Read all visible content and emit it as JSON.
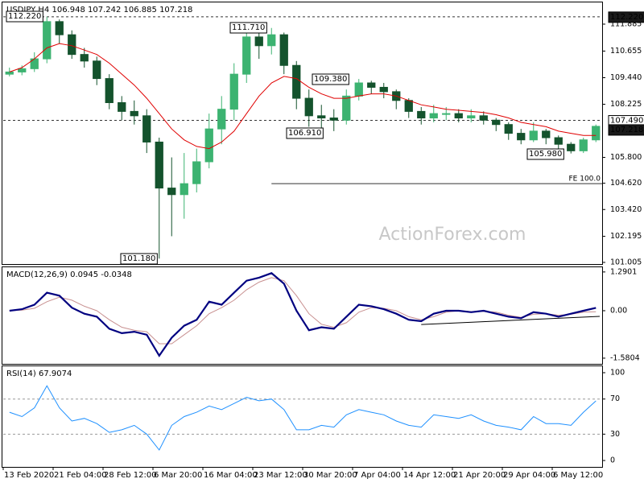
{
  "chart_data": [
    {
      "type": "candlestick",
      "title": "USDJPY,H4  106.948 107.242 106.885 107.218",
      "open": [
        109.6,
        109.7,
        109.85,
        110.3,
        112.0,
        111.4,
        110.5,
        110.2,
        109.4,
        108.3,
        107.9,
        107.7,
        106.5,
        104.4,
        104.1,
        104.6,
        105.6,
        107.1,
        108.0,
        109.6,
        111.3,
        110.9,
        111.4,
        110.0,
        108.5,
        107.7,
        107.6,
        107.5,
        108.6,
        109.2,
        109.0,
        108.8,
        108.4,
        107.9,
        107.6,
        107.8,
        107.8,
        107.6,
        107.7,
        107.5,
        107.3,
        106.9,
        106.6,
        107.0,
        106.7,
        106.4,
        106.1,
        106.6
      ],
      "high": [
        109.9,
        110.0,
        110.6,
        112.22,
        112.1,
        111.6,
        110.8,
        110.4,
        109.6,
        108.6,
        108.4,
        108.0,
        106.7,
        105.8,
        106.0,
        106.2,
        107.8,
        108.6,
        110.1,
        111.6,
        111.5,
        111.71,
        111.5,
        110.2,
        108.9,
        108.2,
        108.0,
        108.9,
        109.38,
        109.3,
        109.2,
        108.9,
        108.5,
        108.1,
        108.2,
        108.1,
        108.0,
        108.0,
        107.9,
        107.6,
        107.4,
        107.1,
        107.4,
        107.1,
        106.8,
        106.5,
        106.7,
        107.3
      ],
      "low": [
        109.5,
        109.55,
        109.7,
        110.1,
        111.0,
        110.3,
        109.9,
        109.1,
        108.0,
        107.5,
        107.3,
        106.0,
        101.18,
        102.2,
        103.0,
        104.2,
        105.3,
        106.4,
        107.5,
        109.2,
        110.3,
        110.5,
        109.6,
        108.0,
        107.2,
        106.91,
        107.0,
        107.3,
        108.4,
        108.7,
        108.5,
        108.0,
        107.6,
        107.3,
        107.4,
        107.5,
        107.4,
        107.4,
        107.3,
        107.0,
        106.6,
        106.4,
        106.5,
        106.4,
        106.2,
        105.98,
        106.0,
        106.5
      ],
      "close": [
        109.7,
        109.85,
        110.3,
        112.0,
        111.4,
        110.5,
        110.2,
        109.4,
        108.3,
        107.9,
        107.7,
        106.5,
        104.4,
        104.1,
        104.6,
        105.6,
        107.1,
        108.0,
        109.6,
        111.3,
        110.9,
        111.4,
        110.0,
        108.5,
        107.7,
        107.6,
        107.5,
        108.6,
        109.2,
        109.0,
        108.8,
        108.4,
        107.9,
        107.6,
        107.8,
        107.8,
        107.6,
        107.7,
        107.5,
        107.3,
        106.9,
        106.6,
        107.0,
        106.7,
        106.4,
        106.1,
        106.6,
        107.218
      ],
      "up_color": "#3cb371",
      "down_color": "#14532d",
      "ma": {
        "color": "#e00000",
        "values": [
          109.7,
          109.9,
          110.3,
          110.8,
          111.0,
          110.9,
          110.7,
          110.5,
          110.1,
          109.6,
          109.1,
          108.5,
          107.8,
          107.1,
          106.6,
          106.3,
          106.2,
          106.5,
          107.0,
          107.8,
          108.6,
          109.2,
          109.5,
          109.4,
          109.0,
          108.7,
          108.5,
          108.5,
          108.6,
          108.7,
          108.7,
          108.6,
          108.4,
          108.2,
          108.1,
          108.0,
          107.95,
          107.9,
          107.85,
          107.75,
          107.6,
          107.4,
          107.3,
          107.2,
          107.0,
          106.9,
          106.8,
          106.8
        ]
      },
      "ylim": [
        100.93,
        112.84
      ],
      "yticks": [
        111.885,
        110.655,
        {
          "value": 109.44,
          "label": "109.440"
        },
        108.225,
        {
          "value": 105.8,
          "label": "105.800"
        },
        {
          "value": 104.62,
          "label": "104.620"
        },
        {
          "value": 103.42,
          "label": "103.420"
        },
        102.195,
        101.005
      ],
      "annotations": [
        {
          "value": 112.22,
          "label": "112.220"
        },
        {
          "value": 111.71,
          "label": "111.710"
        },
        {
          "value": 109.38,
          "label": "109.380"
        },
        {
          "value": 106.91,
          "label": "106.910"
        },
        {
          "value": 101.18,
          "label": "101.180"
        },
        {
          "value": 105.98,
          "label": "105.980"
        }
      ],
      "levels": [
        {
          "value": 112.22,
          "label": "112.220"
        },
        {
          "value": 107.49,
          "label": "107.490"
        }
      ],
      "last_price": {
        "value": 107.218,
        "label": "107.218"
      },
      "fe": {
        "value": 104.6,
        "label": "FE 100.0"
      },
      "watermark": "ActionForex.com"
    },
    {
      "type": "line",
      "title": "MACD(12,26,9) 0.0945 -0.0348",
      "series": [
        {
          "color": "#000080",
          "values": [
            0.0,
            0.05,
            0.2,
            0.6,
            0.5,
            0.1,
            -0.1,
            -0.2,
            -0.6,
            -0.75,
            -0.7,
            -0.8,
            -1.5,
            -0.9,
            -0.5,
            -0.3,
            0.3,
            0.2,
            0.6,
            1.0,
            1.1,
            1.25,
            0.9,
            0.0,
            -0.65,
            -0.55,
            -0.6,
            -0.2,
            0.2,
            0.15,
            0.05,
            -0.1,
            -0.3,
            -0.35,
            -0.1,
            0.0,
            0.0,
            -0.05,
            0.0,
            -0.1,
            -0.2,
            -0.25,
            -0.05,
            -0.1,
            -0.2,
            -0.1,
            0.0,
            0.0945
          ]
        },
        {
          "color": "#c89090",
          "values": [
            0.0,
            0.02,
            0.08,
            0.3,
            0.45,
            0.35,
            0.15,
            0.0,
            -0.3,
            -0.55,
            -0.65,
            -0.7,
            -1.1,
            -1.1,
            -0.8,
            -0.5,
            -0.1,
            0.1,
            0.35,
            0.7,
            0.95,
            1.1,
            1.0,
            0.5,
            -0.1,
            -0.45,
            -0.55,
            -0.4,
            -0.05,
            0.1,
            0.08,
            0.0,
            -0.2,
            -0.3,
            -0.2,
            -0.05,
            0.0,
            -0.03,
            -0.02,
            -0.05,
            -0.15,
            -0.22,
            -0.12,
            -0.1,
            -0.15,
            -0.12,
            -0.05,
            -0.0348
          ]
        }
      ],
      "trendline": [
        -0.46,
        -0.19
      ],
      "ylim": [
        -1.77,
        1.42
      ],
      "yticks": [
        1.2901,
        {
          "value": 0,
          "label": "0.00"
        },
        -1.5804
      ]
    },
    {
      "type": "line",
      "title": "RSI(14) 67.9074",
      "categories": [
        "13 Feb 2020",
        null,
        null,
        null,
        "21 Feb 04:00",
        null,
        null,
        null,
        "28 Feb 12:00",
        null,
        null,
        null,
        "6 Mar 20:00",
        null,
        null,
        null,
        "16 Mar 04:00",
        null,
        null,
        null,
        "23 Mar 12:00",
        null,
        null,
        null,
        "30 Mar 20:00",
        null,
        null,
        null,
        "7 Apr 04:00",
        null,
        null,
        null,
        "14 Apr 12:00",
        null,
        null,
        null,
        "21 Apr 20:00",
        null,
        null,
        null,
        "29 Apr 04:00",
        null,
        null,
        null,
        "6 May 12:00",
        null,
        null,
        null
      ],
      "series": [
        {
          "color": "#1e90ff",
          "values": [
            55,
            50,
            60,
            85,
            60,
            45,
            48,
            42,
            32,
            35,
            40,
            30,
            12,
            40,
            50,
            55,
            62,
            58,
            65,
            72,
            68,
            70,
            58,
            35,
            35,
            40,
            38,
            52,
            58,
            55,
            52,
            45,
            40,
            38,
            52,
            50,
            48,
            52,
            45,
            40,
            38,
            35,
            50,
            42,
            42,
            40,
            55,
            67.9074
          ]
        }
      ],
      "levels": [
        70,
        30
      ],
      "ylim": [
        -7.3,
        106.4
      ],
      "yticks": [
        100,
        70,
        30,
        0
      ]
    }
  ]
}
